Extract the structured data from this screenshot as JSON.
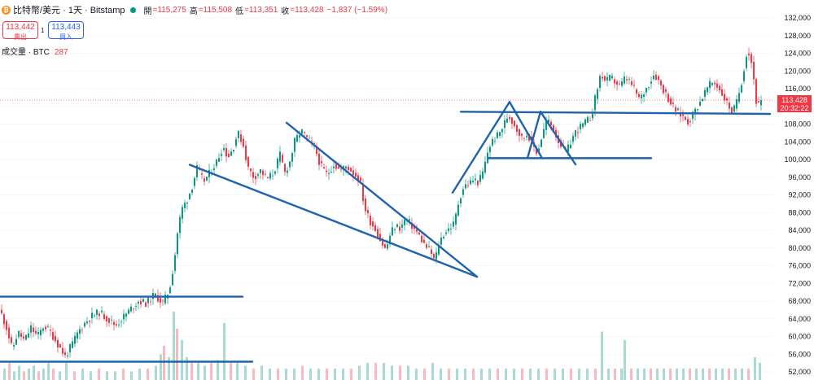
{
  "header": {
    "symbol": "比特幣/美元 · 1天 · Bitstamp",
    "open_label": "開",
    "open": "=115,275",
    "high_label": "高",
    "high": "=115,508",
    "low_label": "低",
    "low": "=113,351",
    "close_label": "收",
    "close": "=113,428",
    "change": "−1,837 (−1.59%)"
  },
  "sell": {
    "price": "113,442",
    "label": "賣出"
  },
  "buy": {
    "price": "113,443",
    "label": "買入"
  },
  "spread": "1",
  "volume": {
    "label": "成交量 · BTC",
    "value": "287"
  },
  "last_price": {
    "price": "113,428",
    "countdown": "20:32:22"
  },
  "colors": {
    "up": "#089981",
    "down": "#f23645",
    "drawing": "#1f63b0",
    "grid": "#eef0f3"
  },
  "chart_data": {
    "type": "candlestick",
    "ylim": [
      52000,
      132000
    ],
    "y_ticks": [
      "132,000",
      "128,000",
      "124,000",
      "120,000",
      "116,000",
      "112,000",
      "108,000",
      "104,000",
      "100,000",
      "96,000",
      "92,000",
      "88,000",
      "84,000",
      "80,000",
      "76,000",
      "72,000",
      "68,000",
      "64,000",
      "60,000",
      "56,000",
      "52,000"
    ],
    "last_price": 113428,
    "close_path": [
      [
        0,
        66000
      ],
      [
        8,
        62000
      ],
      [
        15,
        57000
      ],
      [
        22,
        61000
      ],
      [
        30,
        59000
      ],
      [
        38,
        62000
      ],
      [
        46,
        60000
      ],
      [
        54,
        62500
      ],
      [
        62,
        61000
      ],
      [
        72,
        58000
      ],
      [
        80,
        55500
      ],
      [
        88,
        58000
      ],
      [
        96,
        61000
      ],
      [
        104,
        63000
      ],
      [
        112,
        64500
      ],
      [
        122,
        65500
      ],
      [
        132,
        64000
      ],
      [
        142,
        62500
      ],
      [
        152,
        64500
      ],
      [
        162,
        66500
      ],
      [
        170,
        68000
      ],
      [
        180,
        67500
      ],
      [
        190,
        69500
      ],
      [
        200,
        67500
      ],
      [
        208,
        70500
      ],
      [
        214,
        77000
      ],
      [
        219,
        85000
      ],
      [
        224,
        89000
      ],
      [
        230,
        91000
      ],
      [
        236,
        94000
      ],
      [
        242,
        98000
      ],
      [
        250,
        95000
      ],
      [
        258,
        97000
      ],
      [
        266,
        99500
      ],
      [
        274,
        103000
      ],
      [
        280,
        100500
      ],
      [
        286,
        102500
      ],
      [
        292,
        106000
      ],
      [
        298,
        104000
      ],
      [
        305,
        98000
      ],
      [
        312,
        96000
      ],
      [
        320,
        97500
      ],
      [
        328,
        95500
      ],
      [
        336,
        97000
      ],
      [
        344,
        101000
      ],
      [
        350,
        97000
      ],
      [
        356,
        99500
      ],
      [
        362,
        104000
      ],
      [
        370,
        106500
      ],
      [
        378,
        104500
      ],
      [
        386,
        103000
      ],
      [
        394,
        98500
      ],
      [
        402,
        96500
      ],
      [
        410,
        99000
      ],
      [
        418,
        97500
      ],
      [
        426,
        98500
      ],
      [
        434,
        97000
      ],
      [
        442,
        95500
      ],
      [
        448,
        89000
      ],
      [
        455,
        86000
      ],
      [
        462,
        84000
      ],
      [
        468,
        81500
      ],
      [
        474,
        79500
      ],
      [
        480,
        83500
      ],
      [
        486,
        85000
      ],
      [
        492,
        84500
      ],
      [
        498,
        86500
      ],
      [
        504,
        85500
      ],
      [
        510,
        84000
      ],
      [
        516,
        82500
      ],
      [
        522,
        80500
      ],
      [
        528,
        79500
      ],
      [
        534,
        77000
      ],
      [
        540,
        81500
      ],
      [
        546,
        83500
      ],
      [
        552,
        84500
      ],
      [
        558,
        85500
      ],
      [
        564,
        91000
      ],
      [
        570,
        94000
      ],
      [
        576,
        94500
      ],
      [
        582,
        95500
      ],
      [
        588,
        94800
      ],
      [
        594,
        97500
      ],
      [
        600,
        102500
      ],
      [
        606,
        104500
      ],
      [
        612,
        105500
      ],
      [
        618,
        107500
      ],
      [
        624,
        110000
      ],
      [
        630,
        108500
      ],
      [
        636,
        106500
      ],
      [
        642,
        104500
      ],
      [
        648,
        106000
      ],
      [
        654,
        103500
      ],
      [
        660,
        101500
      ],
      [
        666,
        105500
      ],
      [
        672,
        109000
      ],
      [
        678,
        107500
      ],
      [
        684,
        105000
      ],
      [
        690,
        103000
      ],
      [
        696,
        101500
      ],
      [
        702,
        104500
      ],
      [
        708,
        106500
      ],
      [
        714,
        107500
      ],
      [
        720,
        108500
      ],
      [
        726,
        109500
      ],
      [
        732,
        114500
      ],
      [
        738,
        119500
      ],
      [
        744,
        117500
      ],
      [
        750,
        118500
      ],
      [
        756,
        117500
      ],
      [
        762,
        116500
      ],
      [
        768,
        118500
      ],
      [
        774,
        117500
      ],
      [
        780,
        115500
      ],
      [
        786,
        113500
      ],
      [
        792,
        115500
      ],
      [
        798,
        117500
      ],
      [
        804,
        119500
      ],
      [
        810,
        117500
      ],
      [
        816,
        115500
      ],
      [
        822,
        113500
      ],
      [
        828,
        111500
      ],
      [
        834,
        110500
      ],
      [
        840,
        109500
      ],
      [
        846,
        108500
      ],
      [
        852,
        110500
      ],
      [
        858,
        112500
      ],
      [
        864,
        114500
      ],
      [
        870,
        116500
      ],
      [
        876,
        117500
      ],
      [
        882,
        116500
      ],
      [
        888,
        114500
      ],
      [
        894,
        112500
      ],
      [
        900,
        110500
      ],
      [
        906,
        113500
      ],
      [
        912,
        118500
      ],
      [
        918,
        125000
      ],
      [
        924,
        121500
      ],
      [
        930,
        111500
      ],
      [
        935,
        113428
      ]
    ],
    "volume_bars": [
      [
        4,
        2
      ],
      [
        10,
        3
      ],
      [
        16,
        1.5
      ],
      [
        22,
        2.5
      ],
      [
        28,
        1.5
      ],
      [
        34,
        2
      ],
      [
        40,
        2.5
      ],
      [
        46,
        1.5
      ],
      [
        52,
        2
      ],
      [
        58,
        3
      ],
      [
        64,
        2
      ],
      [
        72,
        1.5
      ],
      [
        80,
        3
      ],
      [
        90,
        1.5
      ],
      [
        100,
        2
      ],
      [
        110,
        1.5
      ],
      [
        120,
        2
      ],
      [
        130,
        1.5
      ],
      [
        140,
        1.5
      ],
      [
        150,
        2
      ],
      [
        160,
        1.5
      ],
      [
        170,
        2
      ],
      [
        180,
        2
      ],
      [
        190,
        2.5
      ],
      [
        196,
        4.5
      ],
      [
        200,
        6
      ],
      [
        206,
        4
      ],
      [
        212,
        12
      ],
      [
        216,
        9
      ],
      [
        222,
        7
      ],
      [
        228,
        4
      ],
      [
        234,
        3
      ],
      [
        242,
        3
      ],
      [
        250,
        2.5
      ],
      [
        258,
        3
      ],
      [
        266,
        3.5
      ],
      [
        274,
        10
      ],
      [
        282,
        3
      ],
      [
        290,
        3
      ],
      [
        300,
        2.5
      ],
      [
        310,
        2
      ],
      [
        320,
        2.5
      ],
      [
        330,
        2
      ],
      [
        340,
        2
      ],
      [
        350,
        2
      ],
      [
        360,
        2
      ],
      [
        370,
        2.5
      ],
      [
        380,
        2
      ],
      [
        390,
        2
      ],
      [
        400,
        2
      ],
      [
        410,
        2
      ],
      [
        420,
        2
      ],
      [
        430,
        2
      ],
      [
        440,
        2.5
      ],
      [
        450,
        3
      ],
      [
        460,
        3
      ],
      [
        470,
        3
      ],
      [
        480,
        2.5
      ],
      [
        490,
        2.5
      ],
      [
        500,
        2.5
      ],
      [
        510,
        2
      ],
      [
        520,
        2
      ],
      [
        530,
        3
      ],
      [
        540,
        2
      ],
      [
        550,
        2
      ],
      [
        560,
        2
      ],
      [
        570,
        2
      ],
      [
        580,
        2
      ],
      [
        590,
        2
      ],
      [
        600,
        2
      ],
      [
        610,
        2
      ],
      [
        620,
        2
      ],
      [
        630,
        2
      ],
      [
        640,
        2
      ],
      [
        650,
        2
      ],
      [
        660,
        2
      ],
      [
        670,
        2
      ],
      [
        680,
        2
      ],
      [
        690,
        2
      ],
      [
        700,
        2
      ],
      [
        710,
        2
      ],
      [
        720,
        2
      ],
      [
        730,
        2
      ],
      [
        738,
        8.5
      ],
      [
        746,
        2
      ],
      [
        754,
        2
      ],
      [
        762,
        2
      ],
      [
        766,
        7
      ],
      [
        774,
        2
      ],
      [
        782,
        2
      ],
      [
        790,
        2
      ],
      [
        798,
        2
      ],
      [
        806,
        2
      ],
      [
        814,
        2
      ],
      [
        822,
        2
      ],
      [
        830,
        2
      ],
      [
        838,
        2
      ],
      [
        846,
        2
      ],
      [
        854,
        2
      ],
      [
        862,
        2
      ],
      [
        870,
        2
      ],
      [
        878,
        2
      ],
      [
        886,
        2
      ],
      [
        894,
        2
      ],
      [
        902,
        2
      ],
      [
        910,
        2
      ],
      [
        918,
        2
      ],
      [
        926,
        4
      ],
      [
        932,
        3
      ]
    ]
  },
  "drawings": [
    {
      "name": "support-line-low",
      "p": [
        [
          0,
          54300
        ],
        [
          310,
          54300
        ]
      ]
    },
    {
      "name": "support-line-68k",
      "p": [
        [
          0,
          69000
        ],
        [
          298,
          69000
        ]
      ]
    },
    {
      "name": "wedge-upper-line",
      "p": [
        [
          352,
          108300
        ],
        [
          586,
          73500
        ]
      ]
    },
    {
      "name": "wedge-lower-line",
      "p": [
        [
          233,
          98800
        ],
        [
          586,
          73500
        ]
      ]
    },
    {
      "name": "triangle-left-side",
      "p": [
        [
          556,
          92500
        ],
        [
          626,
          113000
        ]
      ]
    },
    {
      "name": "triangle-right-side",
      "p": [
        [
          626,
          113000
        ],
        [
          666,
          100300
        ]
      ]
    },
    {
      "name": "triangle-right-side-2",
      "p": [
        [
          664,
          110800
        ],
        [
          707,
          98900
        ]
      ]
    },
    {
      "name": "triangle-left-side-2",
      "p": [
        [
          664,
          110800
        ],
        [
          648,
          100300
        ]
      ]
    },
    {
      "name": "range-bottom-line",
      "p": [
        [
          600,
          100300
        ],
        [
          800,
          100300
        ]
      ]
    },
    {
      "name": "range-top-line",
      "p": [
        [
          566,
          110800
        ],
        [
          946,
          110300
        ]
      ]
    }
  ]
}
